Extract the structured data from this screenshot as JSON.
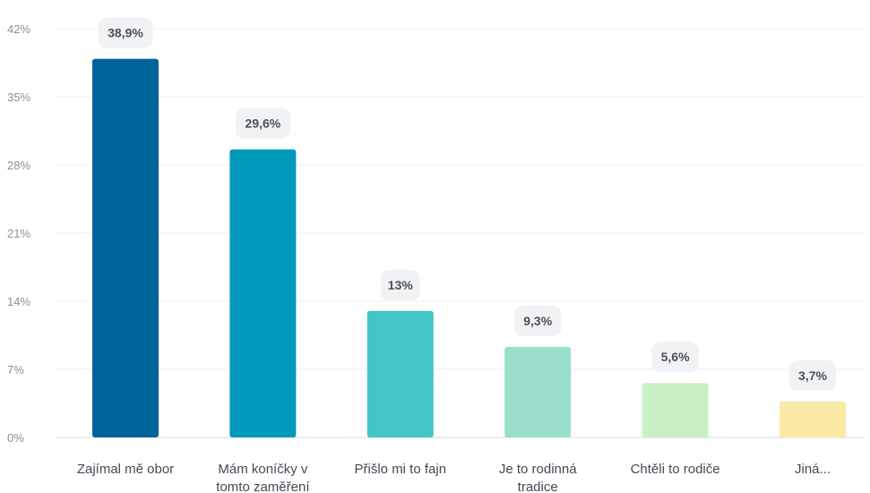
{
  "chart_data": {
    "type": "bar",
    "title": "",
    "xlabel": "",
    "ylabel": "",
    "ylim": [
      0,
      42
    ],
    "yticks": [
      "0%",
      "7%",
      "14%",
      "21%",
      "28%",
      "35%",
      "42%"
    ],
    "ytick_values": [
      0,
      7,
      14,
      21,
      28,
      35,
      42
    ],
    "grid": true,
    "categories": [
      [
        "Zajímal mě obor"
      ],
      [
        "Mám koníčky v",
        "tomto zaměření"
      ],
      [
        "Přišlo mi to fajn"
      ],
      [
        "Je to rodinná",
        "tradice"
      ],
      [
        "Chtěli to rodiče"
      ],
      [
        "Jiná..."
      ]
    ],
    "values": [
      38.9,
      29.6,
      13,
      9.3,
      5.6,
      3.7
    ],
    "value_labels": [
      "38,9%",
      "29,6%",
      "13%",
      "9,3%",
      "5,6%",
      "3,7%"
    ],
    "colors": [
      "#00629b",
      "#0099bb",
      "#43c4c6",
      "#9adfcc",
      "#c9f0c5",
      "#fbe9a6"
    ]
  }
}
